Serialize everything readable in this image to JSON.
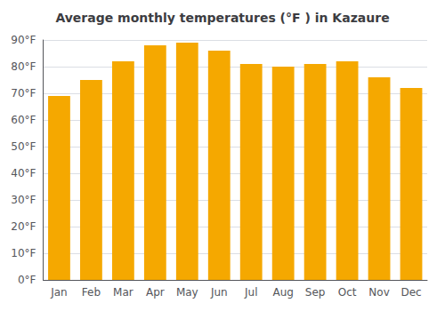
{
  "chart_data": {
    "type": "bar",
    "title": "Average monthly temperatures (°F ) in Kazaure",
    "categories": [
      "Jan",
      "Feb",
      "Mar",
      "Apr",
      "May",
      "Jun",
      "Jul",
      "Aug",
      "Sep",
      "Oct",
      "Nov",
      "Dec"
    ],
    "values": [
      69,
      75,
      82,
      88,
      89,
      86,
      81,
      80,
      81,
      82,
      76,
      72
    ],
    "color": "#F5A800",
    "ylim": [
      0,
      90
    ],
    "yticks": [
      {
        "value": 0,
        "label": "0°F"
      },
      {
        "value": 10,
        "label": "10°F"
      },
      {
        "value": 20,
        "label": "20°F"
      },
      {
        "value": 30,
        "label": "30°F"
      },
      {
        "value": 40,
        "label": "40°F"
      },
      {
        "value": 50,
        "label": "50°F"
      },
      {
        "value": 60,
        "label": "60°F"
      },
      {
        "value": 70,
        "label": "70°F"
      },
      {
        "value": 80,
        "label": "80°F"
      },
      {
        "value": 90,
        "label": "90°F"
      }
    ],
    "grid": true
  }
}
